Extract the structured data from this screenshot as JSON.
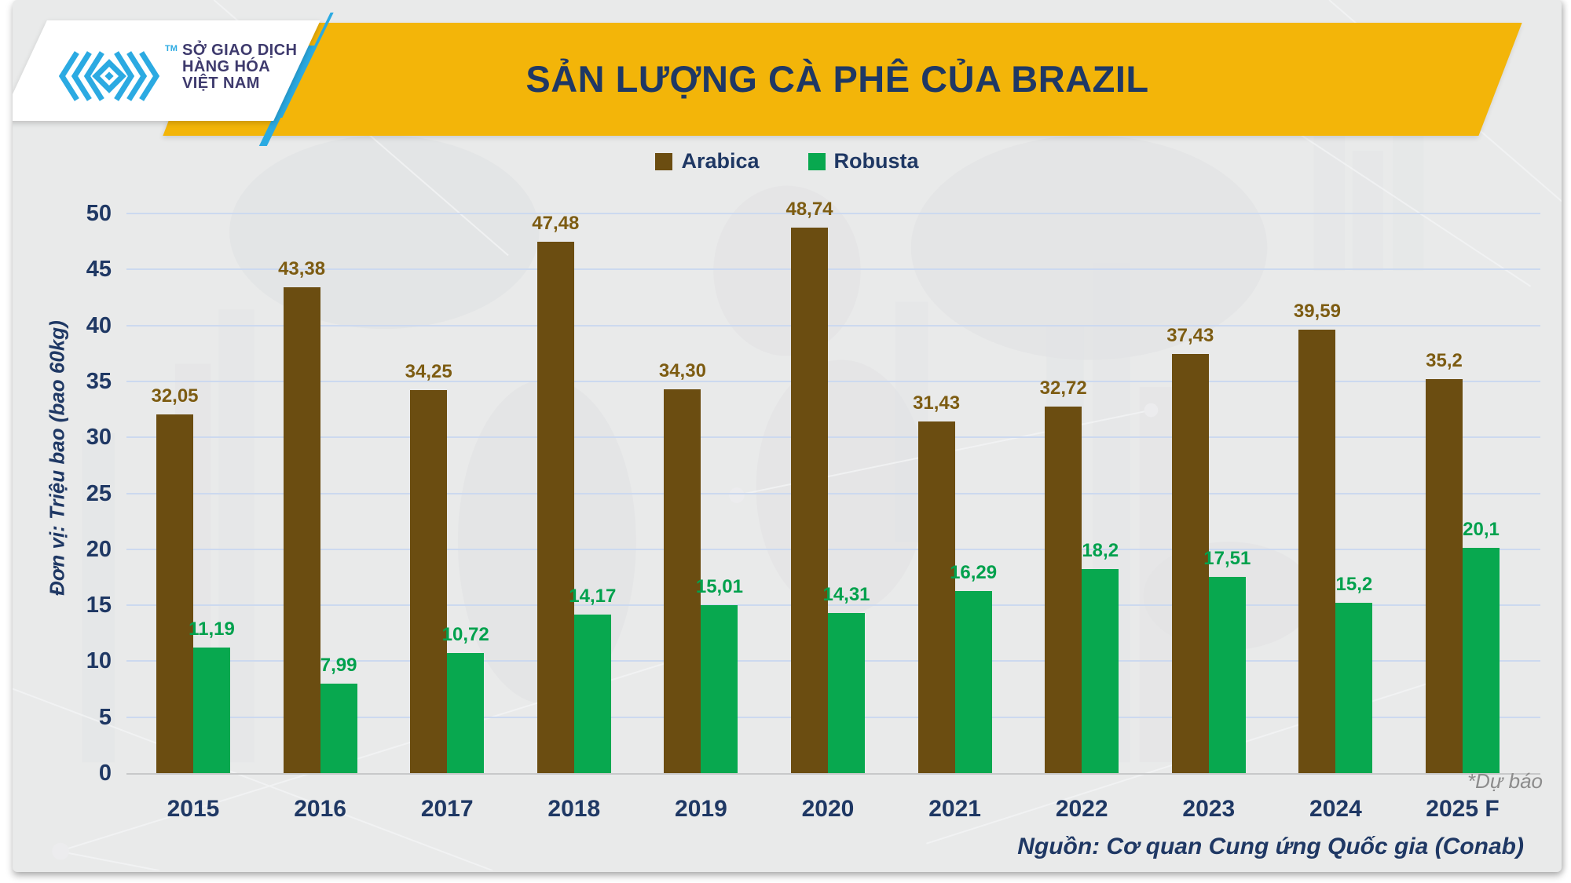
{
  "header": {
    "logo": {
      "lines": [
        "SỞ GIAO DỊCH",
        "HÀNG HÓA",
        "VIỆT NAM"
      ],
      "trademark": "TM",
      "accent_color": "#2BAAE2",
      "text_color": "#3E3A6D"
    },
    "title": "SẢN LƯỢNG CÀ PHÊ CỦA BRAZIL",
    "banner_color": "#F3B509",
    "title_color": "#1F3864"
  },
  "chart_data": {
    "type": "bar",
    "title": "SẢN LƯỢNG CÀ PHÊ CỦA BRAZIL",
    "ylabel": "Đơn vị: Triệu bao (bao 60kg)",
    "categories": [
      "2015",
      "2016",
      "2017",
      "2018",
      "2019",
      "2020",
      "2021",
      "2022",
      "2023",
      "2024",
      "2025 F"
    ],
    "series": [
      {
        "name": "Arabica",
        "color": "#6B4D11",
        "label_color": "#7D5C12",
        "values": [
          32.05,
          43.38,
          34.25,
          47.48,
          34.3,
          48.74,
          31.43,
          32.72,
          37.43,
          39.59,
          35.2
        ],
        "labels": [
          "32,05",
          "43,38",
          "34,25",
          "47,48",
          "34,30",
          "48,74",
          "31,43",
          "32,72",
          "37,43",
          "39,59",
          "35,2"
        ]
      },
      {
        "name": "Robusta",
        "color": "#08A84F",
        "label_color": "#00A14D",
        "values": [
          11.19,
          7.99,
          10.72,
          14.17,
          15.01,
          14.31,
          16.29,
          18.2,
          17.51,
          15.2,
          20.1
        ],
        "labels": [
          "11,19",
          "7,99",
          "10,72",
          "14,17",
          "15,01",
          "14,31",
          "16,29",
          "18,2",
          "17,51",
          "15,2",
          "20,1"
        ]
      }
    ],
    "ylim": [
      0,
      50
    ],
    "yticks": [
      0,
      5,
      10,
      15,
      20,
      25,
      30,
      35,
      40,
      45,
      50
    ],
    "grid": true,
    "legend_position": "top",
    "decimal_separator": ","
  },
  "footnote": "*Dự báo",
  "source": "Nguồn: Cơ quan Cung ứng Quốc gia (Conab)"
}
